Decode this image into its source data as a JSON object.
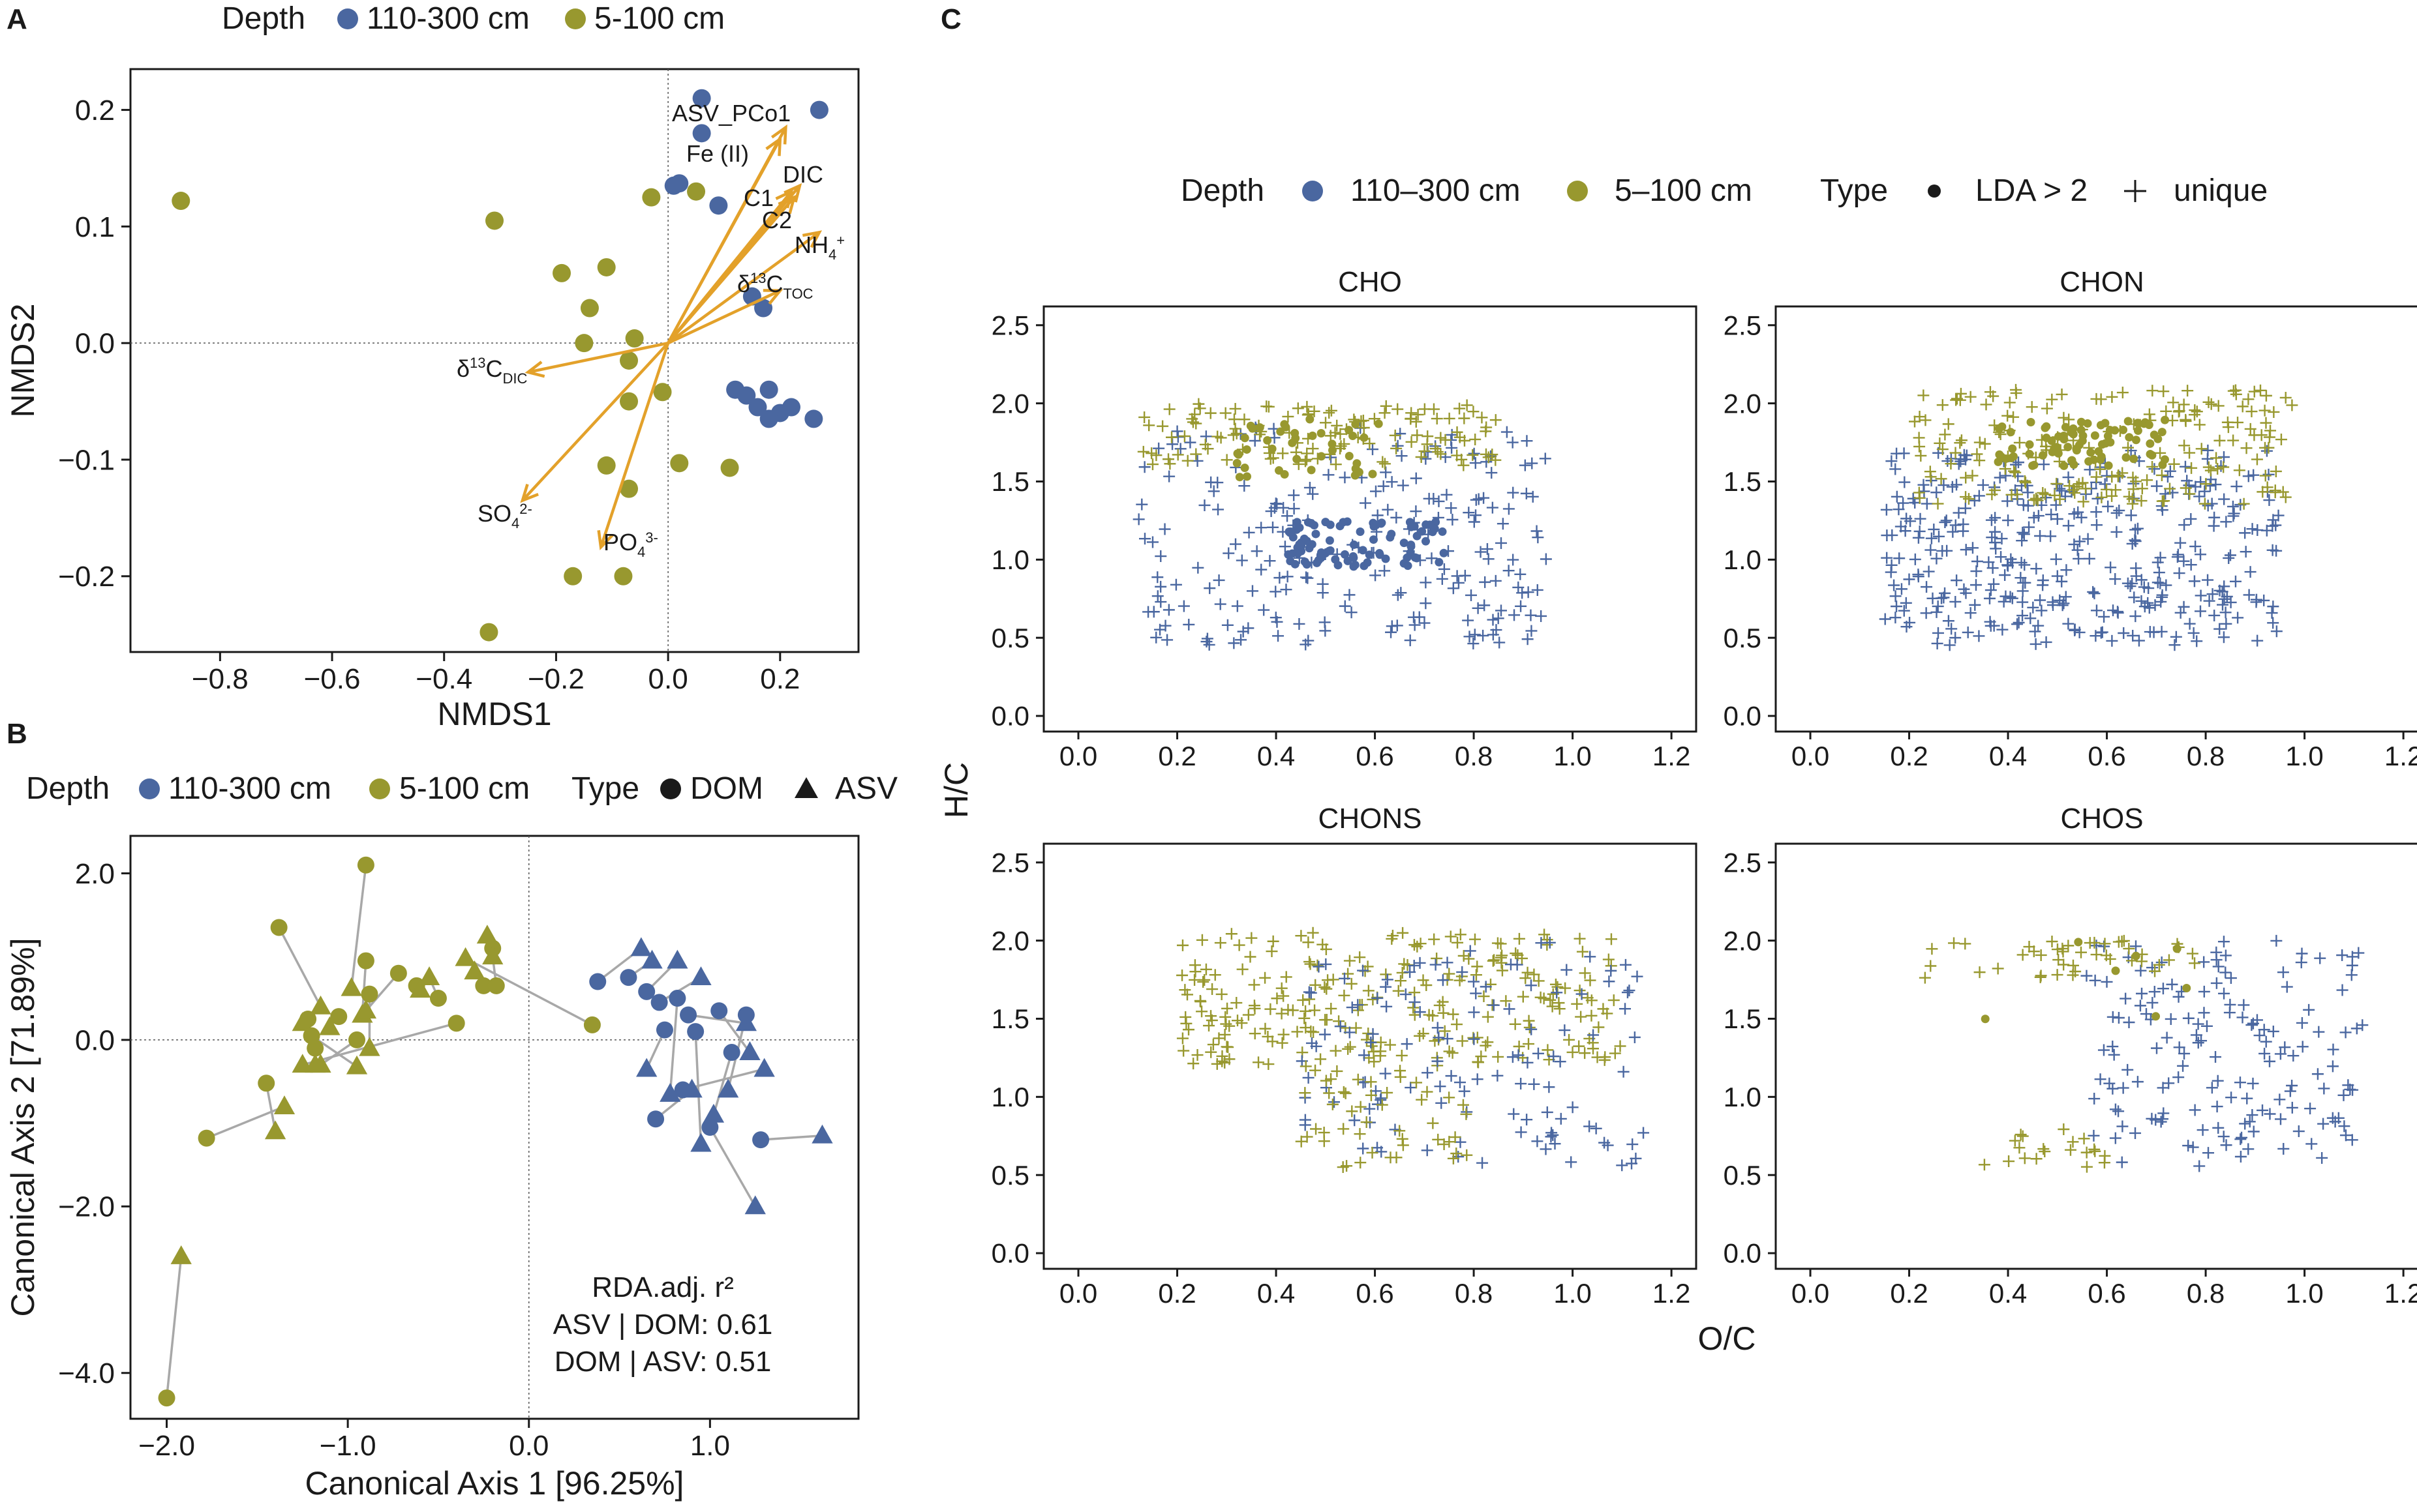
{
  "colors": {
    "deep": "#4a67a0",
    "shallow": "#98982f",
    "arrow": "#e3a12a",
    "connector": "#a8a8a8",
    "ink": "#1a1a1a"
  },
  "panelA": {
    "letter": "A"
  },
  "panelB": {
    "letter": "B"
  },
  "panelC": {
    "letter": "C"
  },
  "chart_data": [
    {
      "panel": "A",
      "type": "scatter",
      "xlabel": "NMDS1",
      "ylabel": "NMDS2",
      "xlim": [
        -0.96,
        0.34
      ],
      "ylim": [
        -0.265,
        0.235
      ],
      "xticks": [
        -0.8,
        -0.6,
        -0.4,
        -0.2,
        0.0,
        0.2
      ],
      "xtick_labels": [
        "−0.8",
        "−0.6",
        "−0.4",
        "−0.2",
        "0.0",
        "0.2"
      ],
      "yticks": [
        -0.2,
        -0.1,
        0.0,
        0.1,
        0.2
      ],
      "ytick_labels": [
        "−0.2",
        "−0.1",
        "0.0",
        "0.1",
        "0.2"
      ],
      "legend": {
        "title": "Depth",
        "entries": [
          "110-300 cm",
          "5-100 cm"
        ]
      },
      "series": [
        {
          "name": "110-300 cm",
          "points": [
            [
              0.06,
              0.21
            ],
            [
              0.27,
              0.2
            ],
            [
              0.06,
              0.18
            ],
            [
              0.02,
              0.137
            ],
            [
              0.01,
              0.135
            ],
            [
              0.09,
              0.118
            ],
            [
              0.15,
              0.04
            ],
            [
              0.17,
              0.03
            ],
            [
              0.12,
              -0.04
            ],
            [
              0.14,
              -0.045
            ],
            [
              0.18,
              -0.04
            ],
            [
              0.16,
              -0.055
            ],
            [
              0.2,
              -0.06
            ],
            [
              0.18,
              -0.065
            ],
            [
              0.22,
              -0.055
            ],
            [
              0.26,
              -0.065
            ]
          ]
        },
        {
          "name": "5-100 cm",
          "points": [
            [
              -0.87,
              0.122
            ],
            [
              -0.31,
              0.105
            ],
            [
              -0.03,
              0.125
            ],
            [
              0.05,
              0.13
            ],
            [
              -0.19,
              0.06
            ],
            [
              -0.11,
              0.065
            ],
            [
              -0.14,
              0.03
            ],
            [
              -0.15,
              0.0
            ],
            [
              -0.06,
              0.004
            ],
            [
              -0.07,
              -0.015
            ],
            [
              -0.01,
              -0.042
            ],
            [
              -0.07,
              -0.05
            ],
            [
              -0.11,
              -0.105
            ],
            [
              0.02,
              -0.103
            ],
            [
              0.11,
              -0.107
            ],
            [
              -0.07,
              -0.125
            ],
            [
              -0.17,
              -0.2
            ],
            [
              -0.08,
              -0.2
            ],
            [
              -0.32,
              -0.248
            ]
          ]
        }
      ],
      "vectors": [
        {
          "label": "ASV_PCo1",
          "end": [
            0.21,
            0.185
          ]
        },
        {
          "label": "Fe (II)",
          "end": [
            0.2,
            0.175
          ]
        },
        {
          "label": "DIC",
          "end": [
            0.235,
            0.135
          ]
        },
        {
          "label": "C1",
          "end": [
            0.22,
            0.13
          ]
        },
        {
          "label": "C2",
          "end": [
            0.225,
            0.125
          ]
        },
        {
          "label": "NH4+",
          "end": [
            0.27,
            0.095
          ]
        },
        {
          "label": "δ13C TOC",
          "end": [
            0.2,
            0.045
          ]
        },
        {
          "label": "δ13C DIC",
          "end": [
            -0.25,
            -0.025
          ]
        },
        {
          "label": "SO4 2-",
          "end": [
            -0.26,
            -0.135
          ]
        },
        {
          "label": "PO4 3-",
          "end": [
            -0.12,
            -0.175
          ]
        }
      ]
    },
    {
      "panel": "B",
      "type": "scatter",
      "xlabel": "Canonical Axis 1 [96.25%]",
      "ylabel": "Canonical Axis 2 [71.89%]",
      "xlim": [
        -2.2,
        1.82
      ],
      "ylim": [
        -4.55,
        2.45
      ],
      "xticks": [
        -2.0,
        -1.0,
        0.0,
        1.0
      ],
      "xtick_labels": [
        "−2.0",
        "−1.0",
        "0.0",
        "1.0"
      ],
      "yticks": [
        -4.0,
        -2.0,
        0.0,
        2.0
      ],
      "ytick_labels": [
        "−4.0",
        "−2.0",
        "0.0",
        "2.0"
      ],
      "legend": {
        "title": "Depth",
        "entries": [
          "110-300 cm",
          "5-100 cm"
        ],
        "type_title": "Type",
        "type_entries": [
          "DOM",
          "ASV"
        ]
      },
      "annotation": [
        "RDA.adj. r²",
        "ASV | DOM: 0.61",
        "DOM | ASV: 0.51"
      ],
      "pairs_shallow": [
        [
          [
            -1.38,
            1.35
          ],
          [
            -1.15,
            0.4
          ]
        ],
        [
          [
            -0.9,
            0.95
          ],
          [
            -0.92,
            0.3
          ]
        ],
        [
          [
            -0.88,
            0.55
          ],
          [
            -0.88,
            -0.1
          ]
        ],
        [
          [
            -0.95,
            0.0
          ],
          [
            -1.15,
            -0.3
          ]
        ],
        [
          [
            -0.9,
            2.1
          ],
          [
            -0.98,
            0.62
          ]
        ],
        [
          [
            -0.72,
            0.8
          ],
          [
            -0.9,
            0.35
          ]
        ],
        [
          [
            -0.62,
            0.65
          ],
          [
            -0.6,
            0.6
          ]
        ],
        [
          [
            -0.25,
            0.65
          ],
          [
            -0.3,
            0.82
          ]
        ],
        [
          [
            -0.2,
            1.1
          ],
          [
            -0.23,
            1.25
          ]
        ],
        [
          [
            -0.18,
            0.65
          ],
          [
            -0.2,
            1.0
          ]
        ],
        [
          [
            -0.5,
            0.5
          ],
          [
            -0.55,
            0.75
          ]
        ],
        [
          [
            -0.4,
            0.2
          ],
          [
            -1.25,
            -0.3
          ]
        ],
        [
          [
            -1.05,
            0.28
          ],
          [
            -1.1,
            0.15
          ]
        ],
        [
          [
            -1.22,
            0.25
          ],
          [
            -1.25,
            0.2
          ]
        ],
        [
          [
            -1.18,
            -0.1
          ],
          [
            -1.18,
            -0.3
          ]
        ],
        [
          [
            -1.78,
            -1.18
          ],
          [
            -1.35,
            -0.8
          ]
        ],
        [
          [
            -1.45,
            -0.52
          ],
          [
            -1.4,
            -1.1
          ]
        ],
        [
          [
            -2.0,
            -4.3
          ],
          [
            -1.92,
            -2.6
          ]
        ],
        [
          [
            0.35,
            0.18
          ],
          [
            -0.35,
            0.98
          ]
        ],
        [
          [
            -1.2,
            0.05
          ],
          [
            -0.95,
            -0.32
          ]
        ]
      ],
      "pairs_deep": [
        [
          [
            0.38,
            0.7
          ],
          [
            0.62,
            1.1
          ]
        ],
        [
          [
            0.55,
            0.75
          ],
          [
            0.68,
            0.95
          ]
        ],
        [
          [
            0.65,
            0.58
          ],
          [
            0.82,
            0.95
          ]
        ],
        [
          [
            0.72,
            0.45
          ],
          [
            0.95,
            0.75
          ]
        ],
        [
          [
            0.82,
            0.5
          ],
          [
            0.78,
            -0.65
          ]
        ],
        [
          [
            0.88,
            0.3
          ],
          [
            1.2,
            0.2
          ]
        ],
        [
          [
            0.92,
            0.1
          ],
          [
            0.95,
            -1.25
          ]
        ],
        [
          [
            1.05,
            0.35
          ],
          [
            1.22,
            -0.15
          ]
        ],
        [
          [
            1.2,
            0.3
          ],
          [
            1.1,
            -0.6
          ]
        ],
        [
          [
            1.12,
            -0.15
          ],
          [
            1.02,
            -0.9
          ]
        ],
        [
          [
            1.28,
            -1.2
          ],
          [
            1.62,
            -1.15
          ]
        ],
        [
          [
            1.0,
            -1.05
          ],
          [
            1.25,
            -2.0
          ]
        ],
        [
          [
            0.85,
            -0.6
          ],
          [
            1.3,
            -0.35
          ]
        ],
        [
          [
            0.7,
            -0.95
          ],
          [
            0.9,
            -0.6
          ]
        ],
        [
          [
            0.75,
            0.12
          ],
          [
            0.65,
            -0.35
          ]
        ]
      ]
    },
    {
      "panel": "C",
      "type": "scatter",
      "xlabel": "O/C",
      "ylabel": "H/C",
      "xlim": [
        -0.07,
        1.25
      ],
      "ylim": [
        -0.1,
        2.62
      ],
      "xticks": [
        0.0,
        0.2,
        0.4,
        0.6,
        0.8,
        1.0,
        1.2
      ],
      "xtick_labels": [
        "0.0",
        "0.2",
        "0.4",
        "0.6",
        "0.8",
        "1.0",
        "1.2"
      ],
      "yticks": [
        0.0,
        0.5,
        1.0,
        1.5,
        2.0,
        2.5
      ],
      "ytick_labels": [
        "0.0",
        "0.5",
        "1.0",
        "1.5",
        "2.0",
        "2.5"
      ],
      "legend": {
        "depth_title": "Depth",
        "depth_entries": [
          "110–300 cm",
          "5–100 cm"
        ],
        "type_title": "Type",
        "type_entries": [
          "LDA > 2",
          "unique"
        ]
      },
      "facets": [
        "CHO",
        "CHON",
        "CHONS",
        "CHOS"
      ]
    }
  ]
}
